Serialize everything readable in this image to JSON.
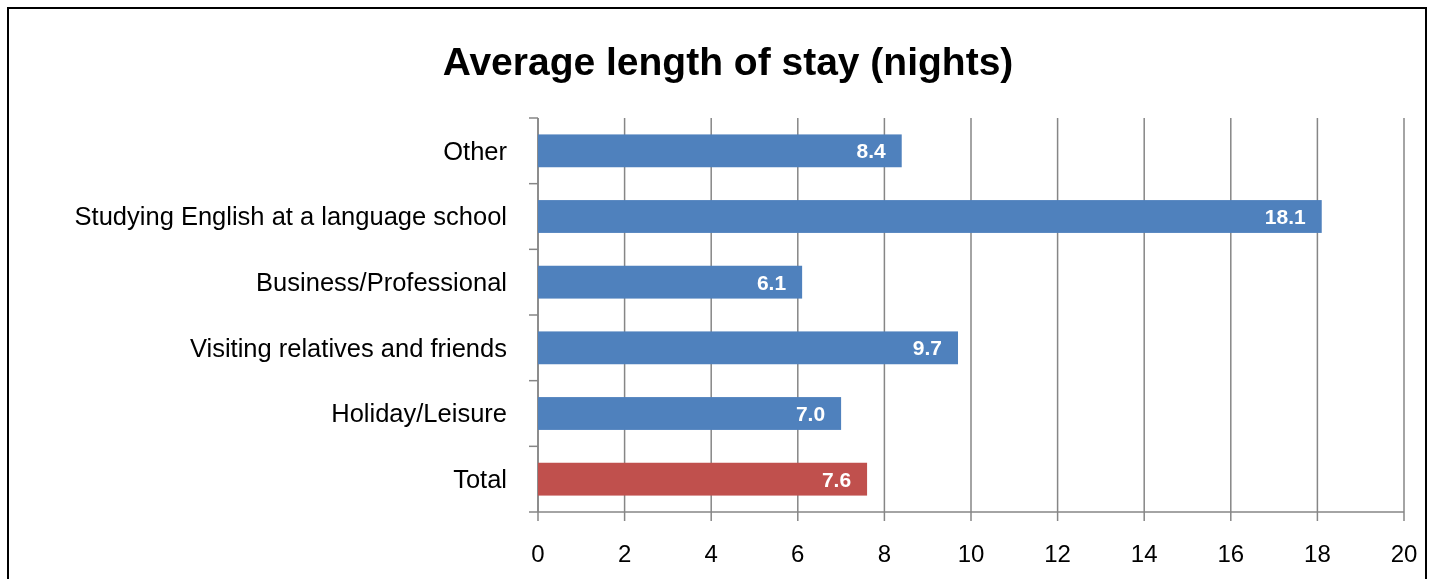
{
  "chart_data": {
    "type": "bar",
    "orientation": "horizontal",
    "title": "Average length of stay (nights)",
    "categories": [
      "Other",
      "Studying English at a language school",
      "Business/Professional",
      "Visiting relatives and friends",
      "Holiday/Leisure",
      "Total"
    ],
    "values": [
      8.4,
      18.1,
      6.1,
      9.7,
      7.0,
      7.6
    ],
    "colors": [
      "#4f81bd",
      "#4f81bd",
      "#4f81bd",
      "#4f81bd",
      "#4f81bd",
      "#c0504d"
    ],
    "value_labels": [
      "8.4",
      "18.1",
      "6.1",
      "9.7",
      "7.0",
      "7.6"
    ],
    "xlim": [
      0,
      20
    ],
    "xticks": [
      0,
      2,
      4,
      6,
      8,
      10,
      12,
      14,
      16,
      18,
      20
    ],
    "grid": "x"
  }
}
